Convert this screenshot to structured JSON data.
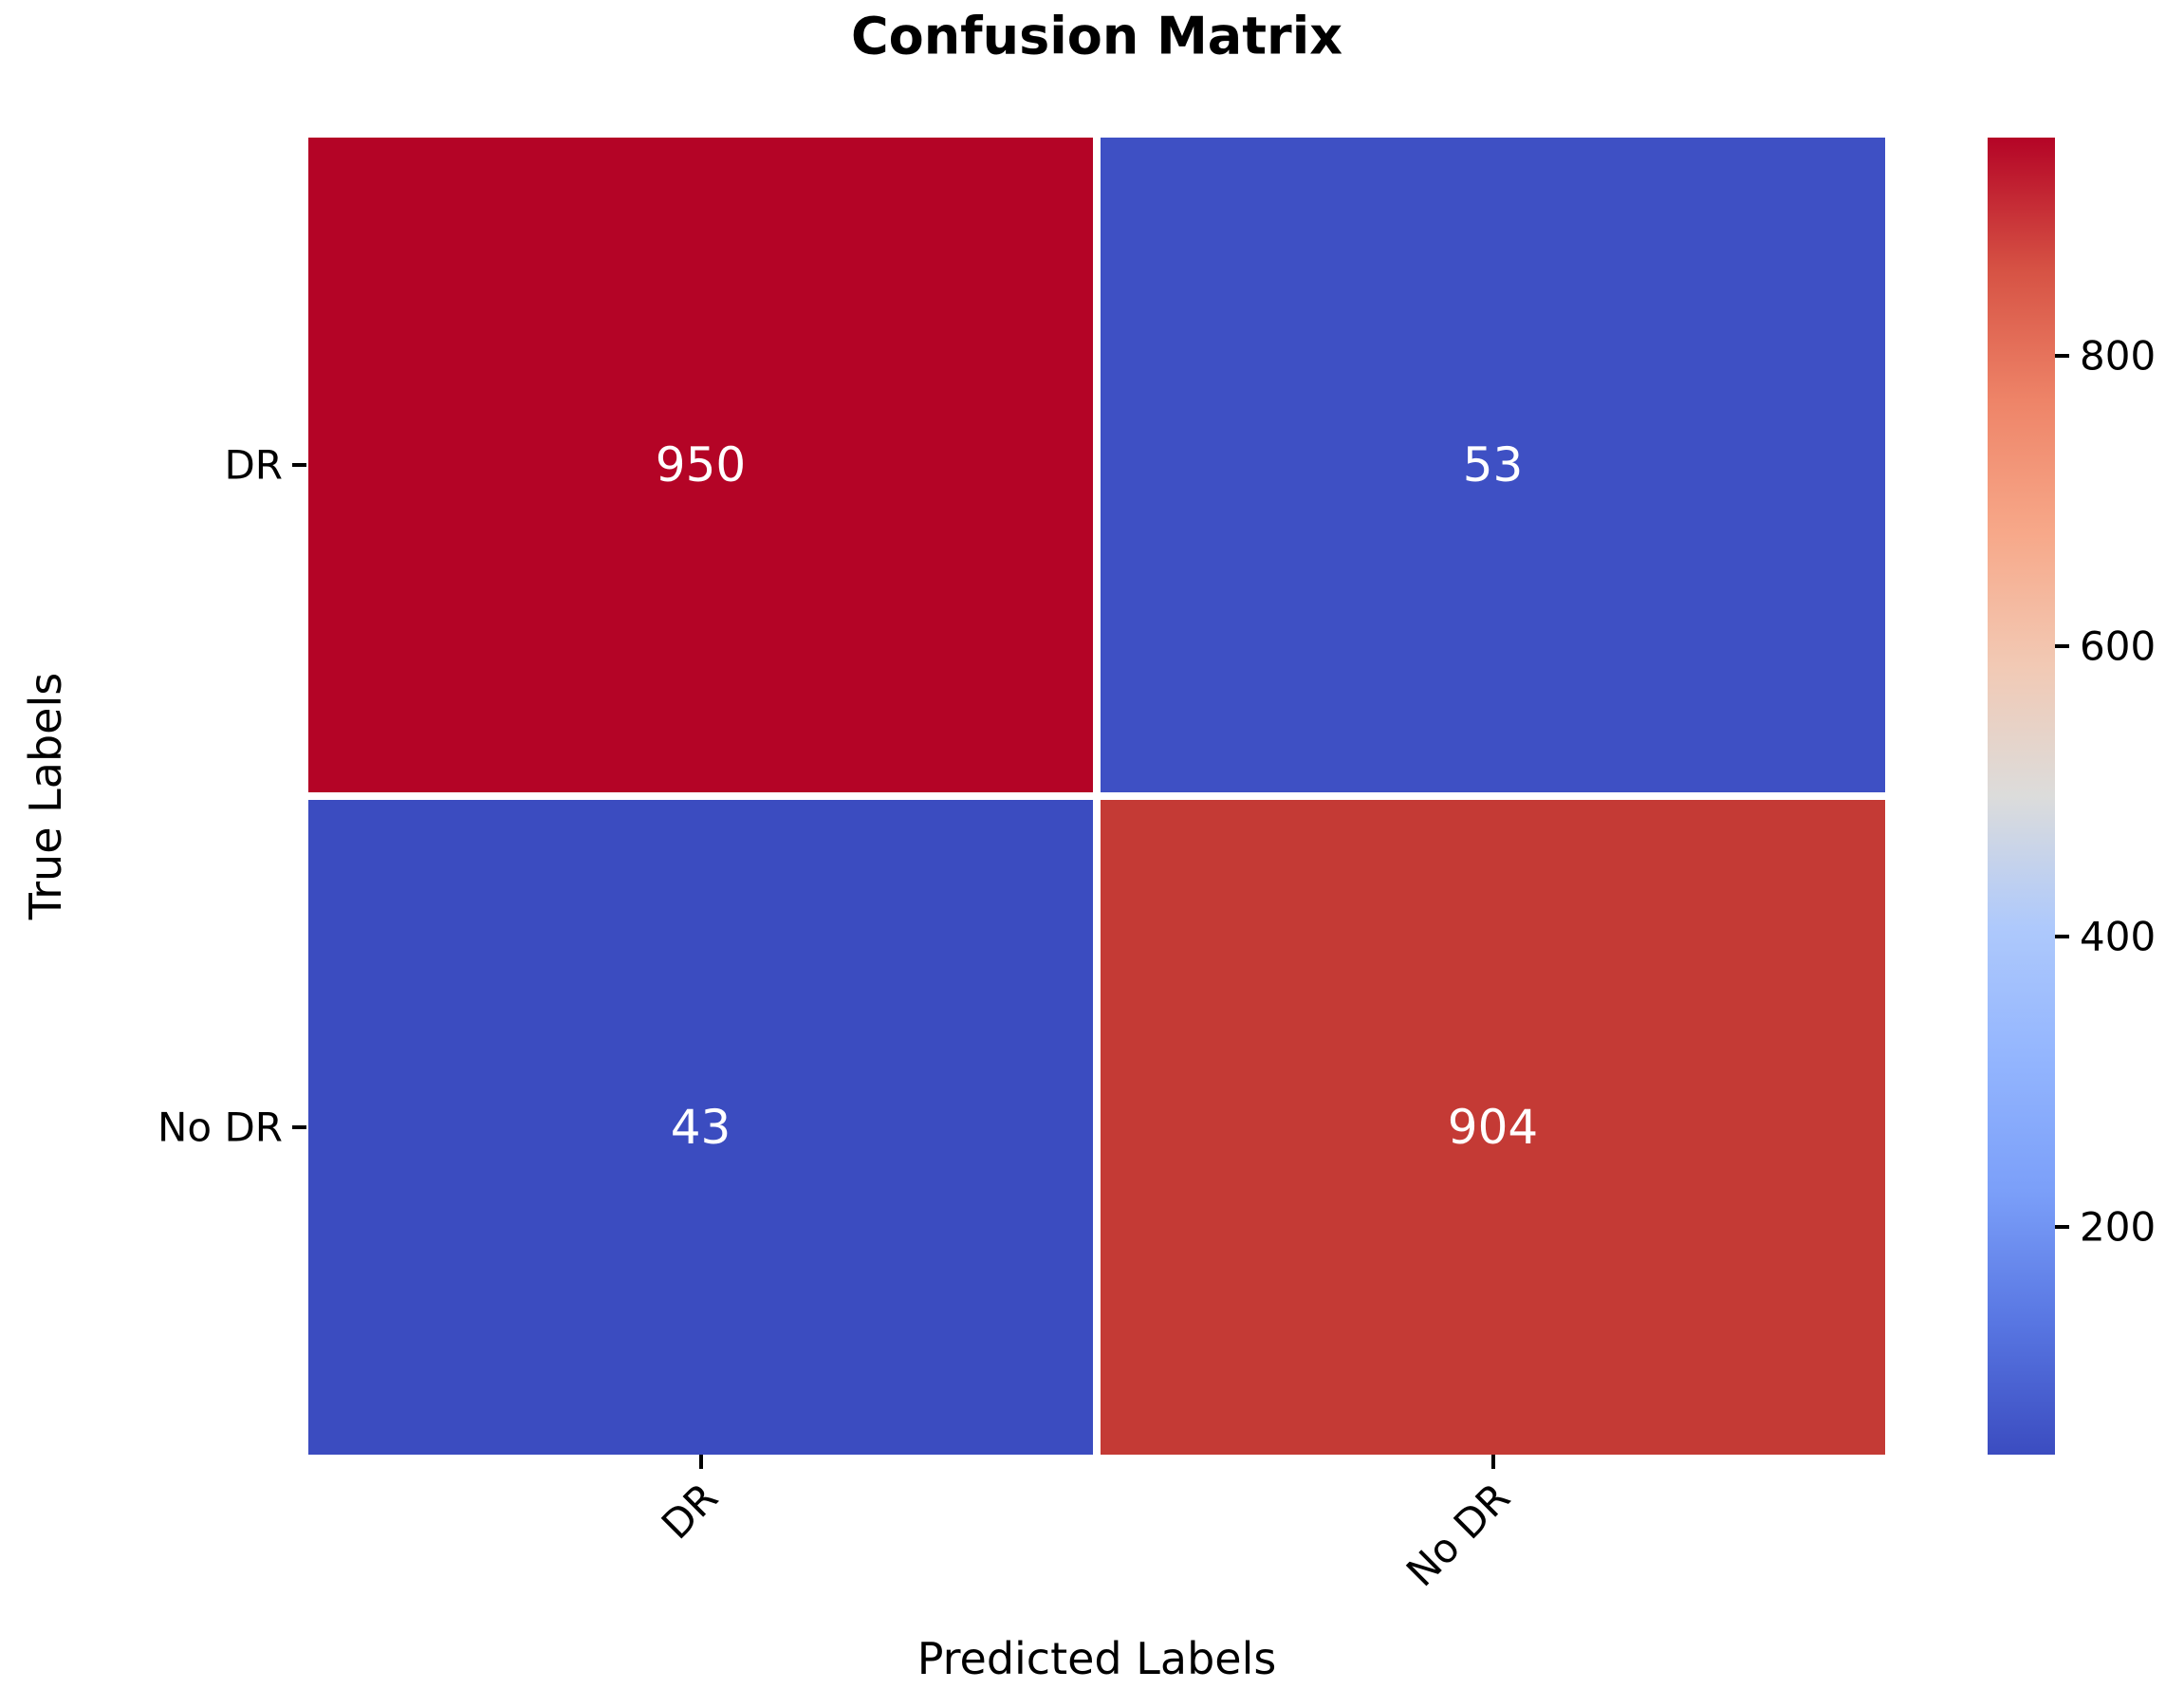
{
  "figure": {
    "title": "Confusion Matrix",
    "xlabel": "Predicted Labels",
    "ylabel": "True Labels"
  },
  "chart_data": {
    "type": "heatmap",
    "title": "Confusion Matrix",
    "xlabel": "Predicted Labels",
    "ylabel": "True Labels",
    "x_categories": [
      "DR",
      "No DR"
    ],
    "y_categories": [
      "DR",
      "No DR"
    ],
    "matrix": [
      [
        950,
        53
      ],
      [
        43,
        904
      ]
    ],
    "vmin": 43,
    "vmax": 950,
    "colormap": "coolwarm",
    "colorbar_ticks": [
      200,
      400,
      600,
      800
    ],
    "colorbar_side": "right",
    "cell_colors": [
      [
        "#b40426",
        "#3e50c4"
      ],
      [
        "#3b4cc0",
        "#c43a35"
      ]
    ],
    "annotation_color": "#ffffff",
    "grid_line_color": "#ffffff",
    "tick_color": "#000000",
    "colormap_stops": [
      "#3b4cc0",
      "#5876e2",
      "#7b9ff9",
      "#93b5fe",
      "#aec9fc",
      "#dcdcdb",
      "#f2c9b4",
      "#f7a889",
      "#ee8468",
      "#d65244",
      "#b40426"
    ]
  }
}
